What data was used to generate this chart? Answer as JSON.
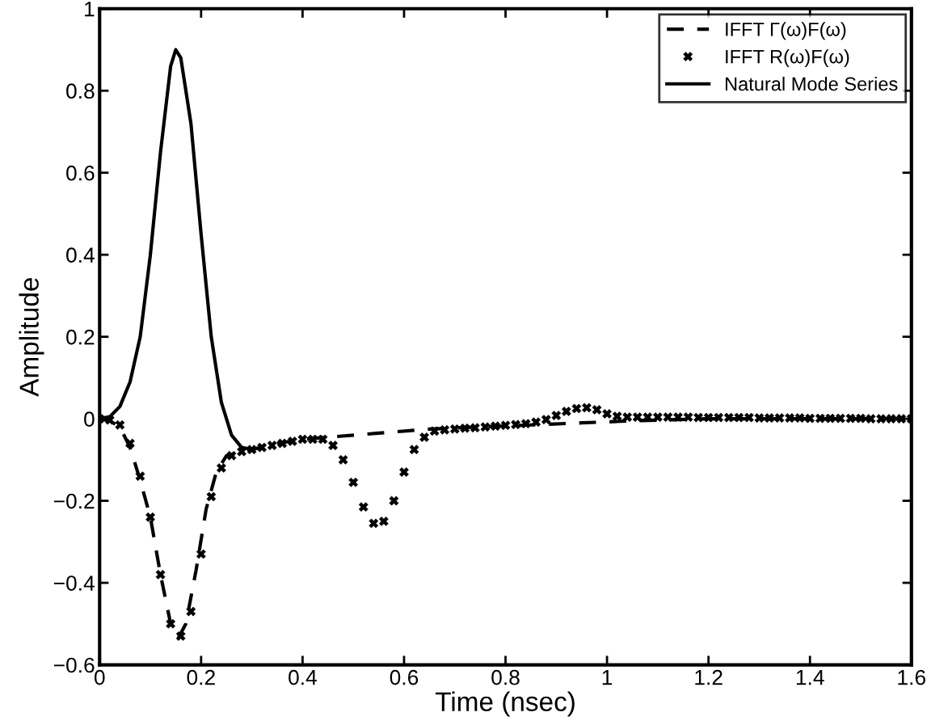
{
  "chart_data": {
    "type": "line",
    "xlabel": "Time (nsec)",
    "ylabel": "Amplitude",
    "xlim": [
      0,
      1.6
    ],
    "ylim": [
      -0.6,
      1
    ],
    "xticks": [
      0,
      0.2,
      0.4,
      0.6,
      0.8,
      1,
      1.2,
      1.4,
      1.6
    ],
    "yticks": [
      {
        "value": -0.6,
        "label": "−0.6"
      },
      {
        "value": -0.4,
        "label": "−0.4"
      },
      {
        "value": -0.2,
        "label": "−0.2"
      },
      0,
      0.2,
      0.4,
      0.6,
      0.8,
      1
    ],
    "grid": false,
    "legend": "top right",
    "series": [
      {
        "name": "IFFT Γ(ω)F(ω)",
        "color": "#000000",
        "line_style": "dashed",
        "marker": "none",
        "x": [
          0,
          0.02,
          0.04,
          0.06,
          0.08,
          0.1,
          0.12,
          0.14,
          0.155,
          0.17,
          0.19,
          0.21,
          0.23,
          0.25,
          0.3,
          0.35,
          0.4,
          0.45,
          0.55,
          0.65,
          0.75,
          0.85,
          0.95,
          1.05,
          1.2,
          1.6
        ],
        "values": [
          0,
          -0.005,
          -0.02,
          -0.07,
          -0.15,
          -0.24,
          -0.38,
          -0.5,
          -0.535,
          -0.5,
          -0.37,
          -0.22,
          -0.13,
          -0.09,
          -0.075,
          -0.06,
          -0.05,
          -0.045,
          -0.035,
          -0.025,
          -0.02,
          -0.015,
          -0.01,
          -0.005,
          0,
          0
        ]
      },
      {
        "name": "IFFT R(ω)F(ω)",
        "type": "scatter",
        "color": "#000000",
        "marker": "cross",
        "x": [
          0,
          0.02,
          0.04,
          0.06,
          0.08,
          0.1,
          0.12,
          0.14,
          0.16,
          0.18,
          0.2,
          0.22,
          0.24,
          0.26,
          0.28,
          0.3,
          0.32,
          0.34,
          0.36,
          0.38,
          0.4,
          0.42,
          0.44,
          0.46,
          0.48,
          0.5,
          0.52,
          0.54,
          0.56,
          0.58,
          0.6,
          0.62,
          0.64,
          0.66,
          0.68,
          0.7,
          0.72,
          0.74,
          0.76,
          0.78,
          0.8,
          0.82,
          0.84,
          0.86,
          0.88,
          0.9,
          0.92,
          0.94,
          0.96,
          0.98,
          1,
          1.02,
          1.04,
          1.06,
          1.08,
          1.1,
          1.12,
          1.14,
          1.16,
          1.18,
          1.2,
          1.22,
          1.24,
          1.26,
          1.28,
          1.3,
          1.32,
          1.34,
          1.36,
          1.38,
          1.4,
          1.42,
          1.44,
          1.46,
          1.48,
          1.5,
          1.52,
          1.54,
          1.56,
          1.58,
          1.6
        ],
        "values": [
          0,
          -0.003,
          -0.015,
          -0.06,
          -0.14,
          -0.24,
          -0.38,
          -0.5,
          -0.53,
          -0.47,
          -0.33,
          -0.19,
          -0.12,
          -0.09,
          -0.08,
          -0.075,
          -0.07,
          -0.065,
          -0.06,
          -0.055,
          -0.05,
          -0.05,
          -0.05,
          -0.065,
          -0.1,
          -0.155,
          -0.215,
          -0.255,
          -0.25,
          -0.2,
          -0.13,
          -0.075,
          -0.045,
          -0.03,
          -0.027,
          -0.025,
          -0.023,
          -0.022,
          -0.02,
          -0.018,
          -0.016,
          -0.014,
          -0.012,
          -0.008,
          -0.002,
          0.008,
          0.018,
          0.025,
          0.027,
          0.022,
          0.012,
          0.006,
          0.004,
          0.004,
          0.004,
          0.004,
          0.004,
          0.004,
          0.004,
          0.003,
          0.003,
          0.003,
          0.003,
          0.003,
          0.003,
          0.002,
          0.002,
          0.002,
          0.002,
          0.002,
          0.001,
          0.001,
          0.001,
          0.001,
          0.001,
          0.001,
          0,
          0,
          0,
          0,
          0
        ]
      },
      {
        "name": "Natural Mode Series",
        "color": "#000000",
        "line_style": "solid",
        "marker": "none",
        "x": [
          0,
          0.02,
          0.04,
          0.06,
          0.08,
          0.1,
          0.12,
          0.14,
          0.15,
          0.16,
          0.18,
          0.2,
          0.22,
          0.24,
          0.26,
          0.28,
          0.3
        ],
        "values": [
          0,
          0.005,
          0.03,
          0.09,
          0.2,
          0.4,
          0.65,
          0.86,
          0.9,
          0.88,
          0.72,
          0.45,
          0.2,
          0.04,
          -0.04,
          -0.07,
          -0.075
        ]
      }
    ]
  }
}
